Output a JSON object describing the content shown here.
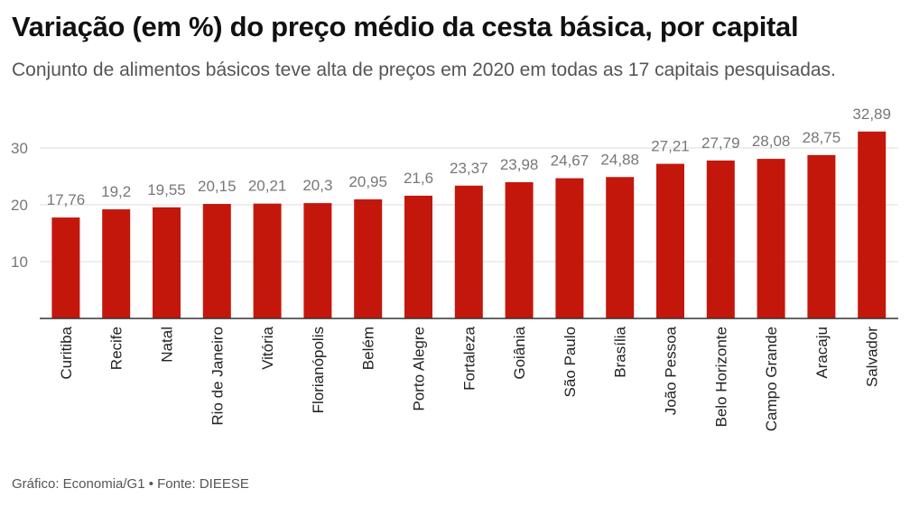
{
  "header": {
    "title": "Variação (em %) do preço médio da cesta básica, por capital",
    "subtitle": "Conjunto de alimentos básicos teve alta de preços em 2020 em todas as 17 capitais pesquisadas."
  },
  "footer": {
    "source": "Gráfico: Economia/G1 • Fonte: DIEESE"
  },
  "chart_data": {
    "type": "bar",
    "categories": [
      "Curitiba",
      "Recife",
      "Natal",
      "Rio de Janeiro",
      "Vitória",
      "Florianópolis",
      "Belém",
      "Porto Alegre",
      "Fortaleza",
      "Goiânia",
      "São Paulo",
      "Brasília",
      "João Pessoa",
      "Belo Horizonte",
      "Campo Grande",
      "Aracaju",
      "Salvador"
    ],
    "values": [
      17.76,
      19.2,
      19.55,
      20.15,
      20.21,
      20.3,
      20.95,
      21.6,
      23.37,
      23.98,
      24.67,
      24.88,
      27.21,
      27.79,
      28.08,
      28.75,
      32.89
    ],
    "value_labels": [
      "17,76",
      "19,2",
      "19,55",
      "20,15",
      "20,21",
      "20,3",
      "20,95",
      "21,6",
      "23,37",
      "23,98",
      "24,67",
      "24,88",
      "27,21",
      "27,79",
      "28,08",
      "28,75",
      "32,89"
    ],
    "yticks": [
      10,
      20,
      30
    ],
    "ylim": [
      0,
      35
    ],
    "grid": true,
    "bar_color": "#c4170c",
    "grid_color": "#dddddd",
    "axis_color": "#333333"
  }
}
